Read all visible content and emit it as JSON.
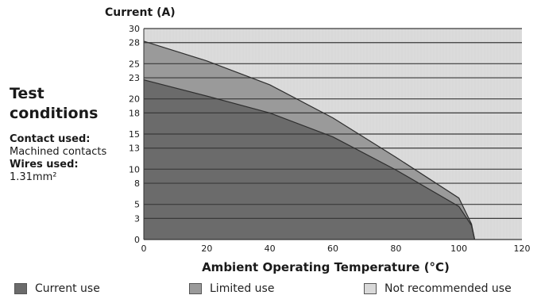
{
  "conditions": {
    "title_line1": "Test",
    "title_line2": "conditions",
    "contact_label": "Contact used:",
    "contact_value": "Machined contacts",
    "wires_label": "Wires used:",
    "wires_value": "1.31mm²"
  },
  "legend": [
    {
      "label": "Current use",
      "color": "#6b6b6b"
    },
    {
      "label": "Limited use",
      "color": "#9a9a9a"
    },
    {
      "label": "Not recommended use",
      "color": "#d9d9d9"
    }
  ],
  "chart_data": {
    "type": "area",
    "title": "",
    "xlabel": "Ambient Operating Temperature (°C)",
    "ylabel": "Current (A)",
    "xlim": [
      0,
      120
    ],
    "ylim": [
      0,
      30
    ],
    "x_ticks": [
      0,
      20,
      40,
      60,
      80,
      100,
      120
    ],
    "y_ticks": [
      0,
      3,
      5,
      8,
      10,
      13,
      15,
      18,
      20,
      23,
      25,
      28,
      30
    ],
    "grid": "horizontal",
    "legend_position": "bottom",
    "series": [
      {
        "name": "Current use",
        "color": "#6b6b6b",
        "x": [
          0,
          20,
          40,
          60,
          80,
          100,
          104,
          105
        ],
        "y": [
          22.7,
          20.4,
          18.0,
          14.6,
          9.9,
          4.7,
          2.0,
          0
        ]
      },
      {
        "name": "Limited use",
        "color": "#9a9a9a",
        "x": [
          0,
          20,
          40,
          60,
          80,
          100,
          104,
          105
        ],
        "y": [
          28.2,
          25.4,
          22.0,
          17.3,
          11.7,
          5.9,
          2.2,
          0
        ]
      },
      {
        "name": "Not recommended use",
        "color": "#d9d9d9"
      }
    ]
  }
}
